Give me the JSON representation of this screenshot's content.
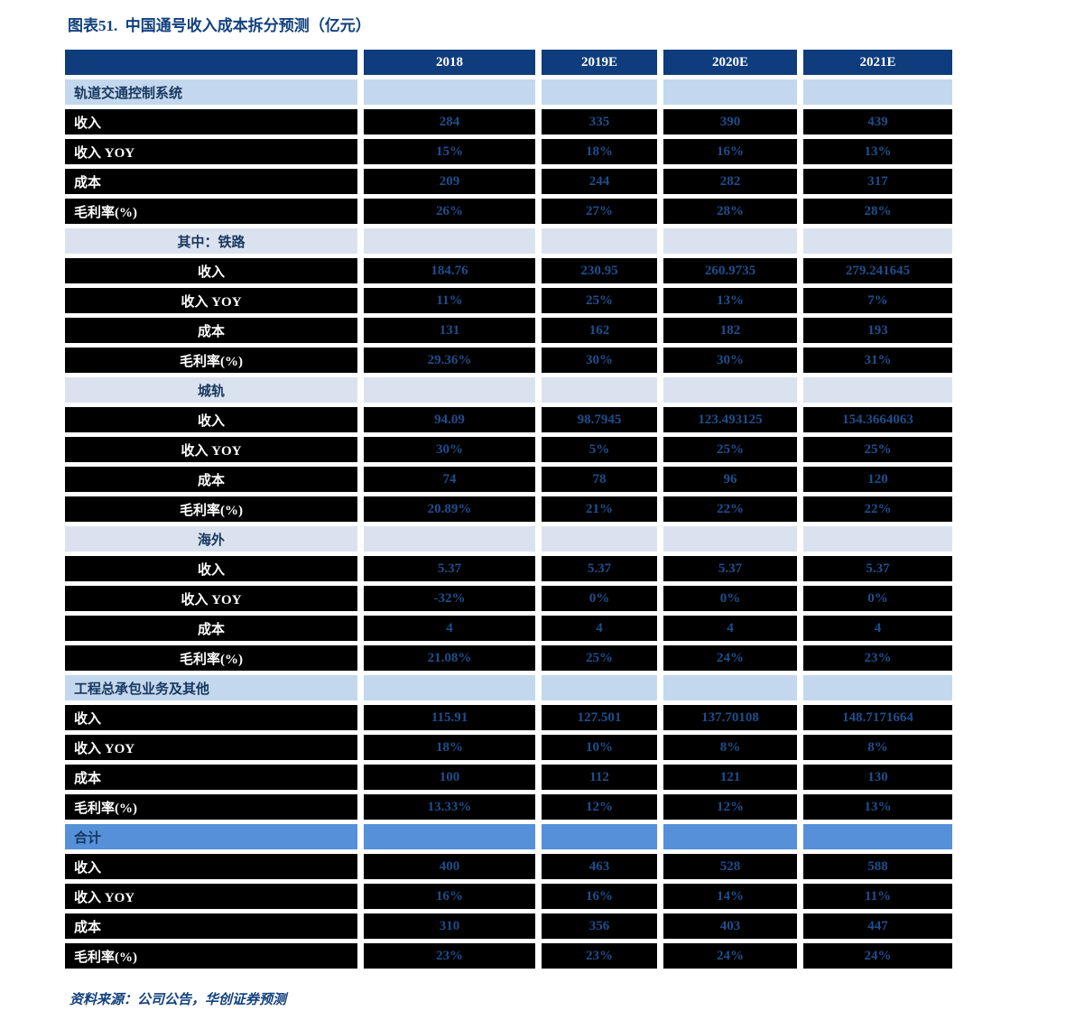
{
  "title": "图表51.  中国通号收入成本拆分预测（亿元）",
  "source_note": "资料来源：公司公告，华创证券预测",
  "colors": {
    "header_bg": "#0E3C7C",
    "section_bg": "#C3D8EE",
    "subsection_bg": "#DBE2EF",
    "total_bg": "#5590D8",
    "data_row_bg": "#000000",
    "value_text": "#1E4E8C",
    "label_text": "#FFFFFF",
    "title_text": "#12417E"
  },
  "table": {
    "columns": [
      "2018",
      "2019E",
      "2020E",
      "2021E"
    ],
    "sections": [
      {
        "label": "轨道交通控制系统",
        "style": "section",
        "align": "left",
        "rows": [
          {
            "label": "收入",
            "values": [
              "284",
              "335",
              "390",
              "439"
            ]
          },
          {
            "label": "收入 YOY",
            "values": [
              "15%",
              "18%",
              "16%",
              "13%"
            ]
          },
          {
            "label": "成本",
            "values": [
              "209",
              "244",
              "282",
              "317"
            ]
          },
          {
            "label": "毛利率(%)",
            "values": [
              "26%",
              "27%",
              "28%",
              "28%"
            ]
          }
        ]
      },
      {
        "label": "其中：铁路",
        "style": "subsection",
        "align": "center",
        "rows": [
          {
            "label": "收入",
            "values": [
              "184.76",
              "230.95",
              "260.9735",
              "279.241645"
            ]
          },
          {
            "label": "收入 YOY",
            "values": [
              "11%",
              "25%",
              "13%",
              "7%"
            ]
          },
          {
            "label": "成本",
            "values": [
              "131",
              "162",
              "182",
              "193"
            ]
          },
          {
            "label": "毛利率(%)",
            "values": [
              "29.36%",
              "30%",
              "30%",
              "31%"
            ]
          }
        ]
      },
      {
        "label": "城轨",
        "style": "subsection",
        "align": "center",
        "rows": [
          {
            "label": "收入",
            "values": [
              "94.09",
              "98.7945",
              "123.493125",
              "154.3664063"
            ]
          },
          {
            "label": "收入 YOY",
            "values": [
              "30%",
              "5%",
              "25%",
              "25%"
            ]
          },
          {
            "label": "成本",
            "values": [
              "74",
              "78",
              "96",
              "120"
            ]
          },
          {
            "label": "毛利率(%)",
            "values": [
              "20.89%",
              "21%",
              "22%",
              "22%"
            ]
          }
        ]
      },
      {
        "label": "海外",
        "style": "subsection",
        "align": "center",
        "rows": [
          {
            "label": "收入",
            "values": [
              "5.37",
              "5.37",
              "5.37",
              "5.37"
            ]
          },
          {
            "label": "收入 YOY",
            "values": [
              "-32%",
              "0%",
              "0%",
              "0%"
            ]
          },
          {
            "label": "成本",
            "values": [
              "4",
              "4",
              "4",
              "4"
            ]
          },
          {
            "label": "毛利率(%)",
            "values": [
              "21.08%",
              "25%",
              "24%",
              "23%"
            ]
          }
        ]
      },
      {
        "label": "工程总承包业务及其他",
        "style": "section",
        "align": "left",
        "rows": [
          {
            "label": "收入",
            "values": [
              "115.91",
              "127.501",
              "137.70108",
              "148.7171664"
            ]
          },
          {
            "label": "收入 YOY",
            "values": [
              "18%",
              "10%",
              "8%",
              "8%"
            ]
          },
          {
            "label": "成本",
            "values": [
              "100",
              "112",
              "121",
              "130"
            ]
          },
          {
            "label": "毛利率(%)",
            "values": [
              "13.33%",
              "12%",
              "12%",
              "13%"
            ]
          }
        ]
      },
      {
        "label": "合计",
        "style": "total",
        "align": "left",
        "rows": [
          {
            "label": "收入",
            "values": [
              "400",
              "463",
              "528",
              "588"
            ]
          },
          {
            "label": "收入 YOY",
            "values": [
              "16%",
              "16%",
              "14%",
              "11%"
            ]
          },
          {
            "label": "成本",
            "values": [
              "310",
              "356",
              "403",
              "447"
            ]
          },
          {
            "label": "毛利率(%)",
            "values": [
              "23%",
              "23%",
              "24%",
              "24%"
            ]
          }
        ]
      }
    ]
  }
}
